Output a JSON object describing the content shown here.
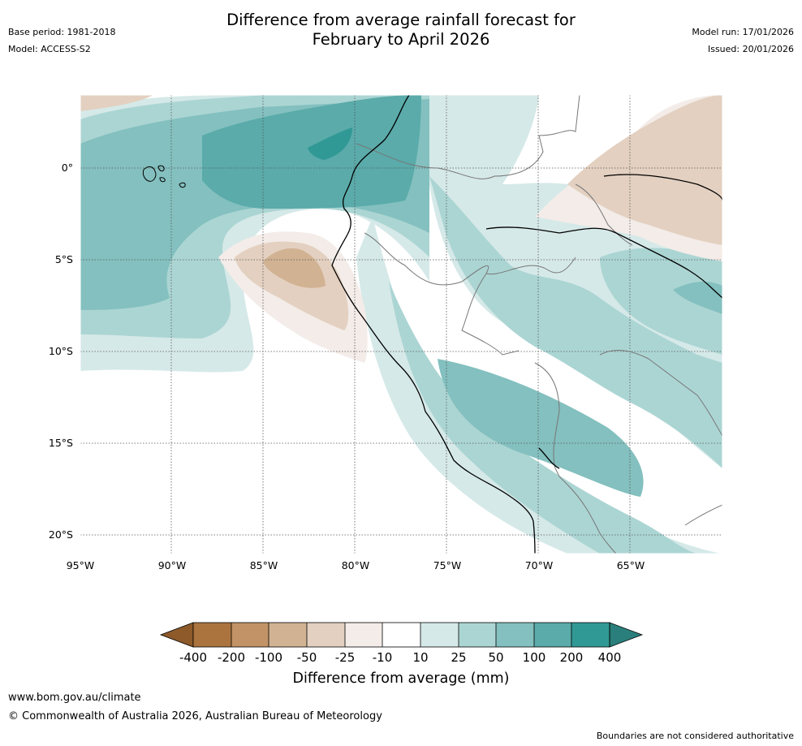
{
  "title": {
    "line1": "Difference from average rainfall forecast for",
    "line2": "February to April 2026"
  },
  "left_meta": {
    "base_period": "Base period: 1981-2018",
    "model": "Model: ACCESS-S2"
  },
  "right_meta": {
    "model_run": "Model run: 17/01/2026",
    "issued": "Issued: 20/01/2026"
  },
  "map": {
    "lat_labels": [
      "0°",
      "5°S",
      "10°S",
      "15°S",
      "20°S"
    ],
    "lon_labels": [
      "95°W",
      "90°W",
      "85°W",
      "80°W",
      "75°W",
      "70°W",
      "65°W"
    ],
    "colors": {
      "wet_1": "#d5e9e8",
      "wet_2": "#abd5d3",
      "wet_3": "#83c0bf",
      "wet_4": "#5aabaa",
      "wet_5": "#319995",
      "wet_6": "#2a7f7c",
      "dry_1": "#f3ece8",
      "dry_2": "#e3d0c0",
      "dry_3": "#d1b292",
      "dry_4": "#c19366",
      "dry_5": "#ab743e",
      "dry_6": "#8e5a2a",
      "coast": "#000000",
      "border": "#777777"
    }
  },
  "colorbar": {
    "colors": [
      "#8e5a2a",
      "#ab743e",
      "#c19366",
      "#d1b292",
      "#e3d0c0",
      "#f3ece8",
      "#ffffff",
      "#d5e9e8",
      "#abd5d3",
      "#83c0bf",
      "#5aabaa",
      "#319995",
      "#2a7f7c"
    ],
    "labels": [
      "-400",
      "-200",
      "-100",
      "-50",
      "-25",
      "-10",
      "10",
      "25",
      "50",
      "100",
      "200",
      "400"
    ],
    "title": "Difference from average (mm)"
  },
  "footer": {
    "website": "www.bom.gov.au/climate",
    "copyright": "© Commonwealth of Australia 2026, Australian Bureau of Meteorology",
    "disclaimer": "Boundaries are not considered authoritative"
  }
}
